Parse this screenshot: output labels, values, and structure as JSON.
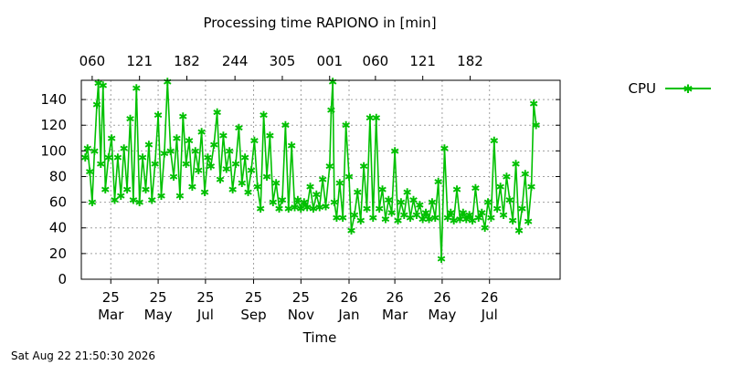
{
  "chart_data": {
    "type": "line",
    "title": "Processing time RAPIONO in [min]",
    "xlabel": "Time",
    "ylabel": "",
    "ylim": [
      0,
      155
    ],
    "yticks": [
      0,
      20,
      40,
      60,
      80,
      100,
      120,
      140
    ],
    "grid": true,
    "legend": {
      "placement": "top-right",
      "entries": [
        "CPU"
      ]
    },
    "series_color": "#00c000",
    "x_range": [
      "2025-02-15",
      "2026-10-25"
    ],
    "bottom_ticks": [
      {
        "date": "2025-03-25",
        "line1": "25",
        "line2": "Mar"
      },
      {
        "date": "2025-05-25",
        "line1": "25",
        "line2": "May"
      },
      {
        "date": "2025-07-25",
        "line1": "25",
        "line2": "Jul"
      },
      {
        "date": "2025-09-25",
        "line1": "25",
        "line2": "Sep"
      },
      {
        "date": "2025-11-25",
        "line1": "25",
        "line2": "Nov"
      },
      {
        "date": "2026-01-26",
        "line1": "26",
        "line2": "Jan"
      },
      {
        "date": "2026-03-26",
        "line1": "26",
        "line2": "Mar"
      },
      {
        "date": "2026-05-26",
        "line1": "26",
        "line2": "May"
      },
      {
        "date": "2026-07-26",
        "line1": "26",
        "line2": "Jul"
      }
    ],
    "top_ticks": [
      {
        "date": "2025-03-01",
        "label": "060"
      },
      {
        "date": "2025-05-01",
        "label": "121"
      },
      {
        "date": "2025-07-01",
        "label": "182"
      },
      {
        "date": "2025-09-01",
        "label": "244"
      },
      {
        "date": "2025-11-01",
        "label": "305"
      },
      {
        "date": "2026-01-01",
        "label": "001"
      },
      {
        "date": "2026-03-01",
        "label": "060"
      },
      {
        "date": "2026-05-01",
        "label": "121"
      },
      {
        "date": "2026-07-01",
        "label": "182"
      }
    ],
    "series": [
      {
        "name": "CPU",
        "points": [
          [
            "2025-02-20",
            95
          ],
          [
            "2025-02-23",
            102
          ],
          [
            "2025-02-26",
            84
          ],
          [
            "2025-03-01",
            60
          ],
          [
            "2025-03-04",
            100
          ],
          [
            "2025-03-07",
            136
          ],
          [
            "2025-03-09",
            153
          ],
          [
            "2025-03-12",
            90
          ],
          [
            "2025-03-15",
            151
          ],
          [
            "2025-03-18",
            70
          ],
          [
            "2025-03-22",
            95
          ],
          [
            "2025-03-26",
            110
          ],
          [
            "2025-03-30",
            62
          ],
          [
            "2025-04-03",
            95
          ],
          [
            "2025-04-07",
            65
          ],
          [
            "2025-04-11",
            102
          ],
          [
            "2025-04-15",
            70
          ],
          [
            "2025-04-19",
            125
          ],
          [
            "2025-04-23",
            62
          ],
          [
            "2025-04-27",
            149
          ],
          [
            "2025-05-01",
            60
          ],
          [
            "2025-05-05",
            95
          ],
          [
            "2025-05-09",
            70
          ],
          [
            "2025-05-13",
            105
          ],
          [
            "2025-05-17",
            62
          ],
          [
            "2025-05-21",
            90
          ],
          [
            "2025-05-25",
            128
          ],
          [
            "2025-05-29",
            65
          ],
          [
            "2025-06-02",
            98
          ],
          [
            "2025-06-06",
            154
          ],
          [
            "2025-06-10",
            100
          ],
          [
            "2025-06-14",
            80
          ],
          [
            "2025-06-18",
            110
          ],
          [
            "2025-06-22",
            65
          ],
          [
            "2025-06-26",
            127
          ],
          [
            "2025-06-30",
            90
          ],
          [
            "2025-07-04",
            108
          ],
          [
            "2025-07-08",
            72
          ],
          [
            "2025-07-12",
            100
          ],
          [
            "2025-07-16",
            85
          ],
          [
            "2025-07-20",
            115
          ],
          [
            "2025-07-24",
            68
          ],
          [
            "2025-07-28",
            95
          ],
          [
            "2025-08-01",
            88
          ],
          [
            "2025-08-05",
            105
          ],
          [
            "2025-08-09",
            130
          ],
          [
            "2025-08-13",
            78
          ],
          [
            "2025-08-17",
            112
          ],
          [
            "2025-08-21",
            86
          ],
          [
            "2025-08-25",
            100
          ],
          [
            "2025-08-29",
            70
          ],
          [
            "2025-09-02",
            90
          ],
          [
            "2025-09-06",
            118
          ],
          [
            "2025-09-10",
            75
          ],
          [
            "2025-09-14",
            95
          ],
          [
            "2025-09-18",
            68
          ],
          [
            "2025-09-22",
            85
          ],
          [
            "2025-09-26",
            108
          ],
          [
            "2025-09-30",
            72
          ],
          [
            "2025-10-04",
            55
          ],
          [
            "2025-10-08",
            128
          ],
          [
            "2025-10-12",
            80
          ],
          [
            "2025-10-16",
            112
          ],
          [
            "2025-10-20",
            60
          ],
          [
            "2025-10-24",
            75
          ],
          [
            "2025-10-28",
            55
          ],
          [
            "2025-11-01",
            62
          ],
          [
            "2025-11-05",
            120
          ],
          [
            "2025-11-09",
            55
          ],
          [
            "2025-11-13",
            104
          ],
          [
            "2025-11-17",
            56
          ],
          [
            "2025-11-21",
            62
          ],
          [
            "2025-11-25",
            55
          ],
          [
            "2025-11-29",
            60
          ],
          [
            "2025-12-03",
            56
          ],
          [
            "2025-12-07",
            72
          ],
          [
            "2025-12-11",
            55
          ],
          [
            "2025-12-15",
            66
          ],
          [
            "2025-12-19",
            56
          ],
          [
            "2025-12-23",
            78
          ],
          [
            "2025-12-27",
            57
          ],
          [
            "2026-01-01",
            88
          ],
          [
            "2026-01-03",
            132
          ],
          [
            "2026-01-05",
            154
          ],
          [
            "2026-01-07",
            60
          ],
          [
            "2026-01-10",
            48
          ],
          [
            "2026-01-14",
            75
          ],
          [
            "2026-01-18",
            48
          ],
          [
            "2026-01-22",
            120
          ],
          [
            "2026-01-26",
            80
          ],
          [
            "2026-01-29",
            38
          ],
          [
            "2026-02-02",
            50
          ],
          [
            "2026-02-06",
            68
          ],
          [
            "2026-02-10",
            46
          ],
          [
            "2026-02-14",
            88
          ],
          [
            "2026-02-18",
            55
          ],
          [
            "2026-02-22",
            126
          ],
          [
            "2026-02-26",
            48
          ],
          [
            "2026-03-02",
            126
          ],
          [
            "2026-03-06",
            55
          ],
          [
            "2026-03-10",
            70
          ],
          [
            "2026-03-14",
            47
          ],
          [
            "2026-03-18",
            62
          ],
          [
            "2026-03-22",
            52
          ],
          [
            "2026-03-26",
            100
          ],
          [
            "2026-03-30",
            46
          ],
          [
            "2026-04-03",
            60
          ],
          [
            "2026-04-07",
            50
          ],
          [
            "2026-04-11",
            68
          ],
          [
            "2026-04-15",
            48
          ],
          [
            "2026-04-19",
            62
          ],
          [
            "2026-04-23",
            50
          ],
          [
            "2026-04-27",
            58
          ],
          [
            "2026-05-01",
            47
          ],
          [
            "2026-05-05",
            52
          ],
          [
            "2026-05-09",
            47
          ],
          [
            "2026-05-13",
            60
          ],
          [
            "2026-05-17",
            48
          ],
          [
            "2026-05-21",
            76
          ],
          [
            "2026-05-25",
            16
          ],
          [
            "2026-05-29",
            102
          ],
          [
            "2026-06-02",
            48
          ],
          [
            "2026-06-06",
            52
          ],
          [
            "2026-06-10",
            46
          ],
          [
            "2026-06-14",
            70
          ],
          [
            "2026-06-18",
            47
          ],
          [
            "2026-06-22",
            52
          ],
          [
            "2026-06-26",
            47
          ],
          [
            "2026-06-30",
            50
          ],
          [
            "2026-07-04",
            46
          ],
          [
            "2026-07-08",
            71
          ],
          [
            "2026-07-12",
            48
          ],
          [
            "2026-07-16",
            52
          ],
          [
            "2026-07-20",
            40
          ],
          [
            "2026-07-24",
            60
          ],
          [
            "2026-07-28",
            48
          ],
          [
            "2026-08-01",
            108
          ],
          [
            "2026-08-05",
            55
          ],
          [
            "2026-08-09",
            72
          ],
          [
            "2026-08-13",
            50
          ],
          [
            "2026-08-17",
            80
          ],
          [
            "2026-08-21",
            62
          ],
          [
            "2026-08-25",
            46
          ],
          [
            "2026-08-29",
            90
          ],
          [
            "2026-09-02",
            38
          ],
          [
            "2026-09-06",
            55
          ],
          [
            "2026-09-10",
            82
          ],
          [
            "2026-09-14",
            45
          ],
          [
            "2026-09-18",
            72
          ],
          [
            "2026-09-21",
            137
          ],
          [
            "2026-09-24",
            120
          ]
        ]
      }
    ]
  },
  "footer": {
    "timestamp": "Sat Aug 22 21:50:30 2026"
  }
}
